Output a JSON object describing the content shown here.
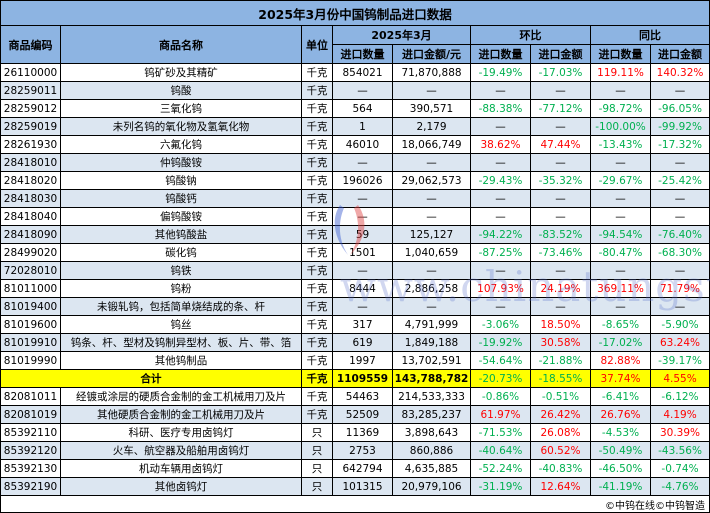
{
  "title": "2025年3月份中国钨制品进口数据",
  "headers": {
    "code": "商品编码",
    "name": "商品名称",
    "unit": "单位",
    "period": "2025年3月",
    "mom": "环比",
    "yoy": "同比",
    "qty": "进口数量",
    "amount": "进口金额/元",
    "amount_short": "进口金额"
  },
  "colors": {
    "header": "#8db4e2",
    "alt_row": "#dce6f1",
    "total": "#ffff00",
    "negative": "#00b050",
    "positive": "#ff0000"
  },
  "rows": [
    [
      "26110000",
      "钨矿砂及其精矿",
      "千克",
      "854021",
      "71,870,888",
      "-19.49%",
      "-17.03%",
      "119.11%",
      "140.32%"
    ],
    [
      "28259011",
      "钨酸",
      "千克",
      "—",
      "—",
      "—",
      "—",
      "—",
      "—"
    ],
    [
      "28259012",
      "三氧化钨",
      "千克",
      "564",
      "390,571",
      "-88.38%",
      "-77.12%",
      "-98.72%",
      "-96.05%"
    ],
    [
      "28259019",
      "未列名钨的氧化物及氢氧化物",
      "千克",
      "1",
      "2,179",
      "—",
      "—",
      "-100.00%",
      "-99.92%"
    ],
    [
      "28261930",
      "六氟化钨",
      "千克",
      "46010",
      "18,066,749",
      "38.62%",
      "47.44%",
      "-13.43%",
      "-17.32%"
    ],
    [
      "28418010",
      "仲钨酸铵",
      "千克",
      "—",
      "—",
      "—",
      "—",
      "—",
      "—"
    ],
    [
      "28418020",
      "钨酸钠",
      "千克",
      "196026",
      "29,062,573",
      "-29.43%",
      "-35.32%",
      "-29.67%",
      "-25.42%"
    ],
    [
      "28418030",
      "钨酸钙",
      "千克",
      "—",
      "—",
      "—",
      "—",
      "—",
      "—"
    ],
    [
      "28418040",
      "偏钨酸铵",
      "千克",
      "—",
      "—",
      "—",
      "—",
      "—",
      "—"
    ],
    [
      "28418090",
      "其他钨酸盐",
      "千克",
      "59",
      "125,127",
      "-94.22%",
      "-83.52%",
      "-94.54%",
      "-76.40%"
    ],
    [
      "28499020",
      "碳化钨",
      "千克",
      "1501",
      "1,040,659",
      "-87.25%",
      "-73.46%",
      "-80.47%",
      "-68.30%"
    ],
    [
      "72028010",
      "钨铁",
      "千克",
      "—",
      "—",
      "—",
      "—",
      "—",
      "—"
    ],
    [
      "81011000",
      "钨粉",
      "千克",
      "8444",
      "2,886,258",
      "107.93%",
      "24.19%",
      "369.11%",
      "71.79%"
    ],
    [
      "81019400",
      "未锻轧钨，包括简单烧结成的条、杆",
      "千克",
      "—",
      "—",
      "—",
      "—",
      "—",
      "—"
    ],
    [
      "81019600",
      "钨丝",
      "千克",
      "317",
      "4,791,999",
      "-3.06%",
      "18.50%",
      "-8.65%",
      "-5.90%"
    ],
    [
      "81019910",
      "钨条、杆、型材及钨制异型材、板、片、带、箔",
      "千克",
      "619",
      "1,849,188",
      "-19.92%",
      "30.58%",
      "-17.02%",
      "63.24%"
    ],
    [
      "81019990",
      "其他钨制品",
      "千克",
      "1997",
      "13,702,591",
      "-54.64%",
      "-21.88%",
      "82.88%",
      "-39.17%"
    ],
    [
      "",
      "合计",
      "千克",
      "1109559",
      "143,788,782",
      "-20.73%",
      "-18.55%",
      "37.74%",
      "4.55%"
    ],
    [
      "82081011",
      "经镀或涂层的硬质合金制的金工机械用刀及片",
      "千克",
      "54463",
      "214,533,333",
      "-0.86%",
      "-0.51%",
      "-6.41%",
      "-6.12%"
    ],
    [
      "82081019",
      "其他硬质合金制的金工机械用刀及片",
      "千克",
      "52509",
      "83,285,237",
      "61.97%",
      "26.42%",
      "26.76%",
      "4.19%"
    ],
    [
      "85392110",
      "科研、医疗专用卤钨灯",
      "只",
      "11369",
      "3,898,643",
      "-71.53%",
      "26.08%",
      "-4.53%",
      "30.39%"
    ],
    [
      "85392120",
      "火车、航空器及船舶用卤钨灯",
      "只",
      "2753",
      "860,886",
      "-40.64%",
      "60.52%",
      "-50.49%",
      "-43.56%"
    ],
    [
      "85392130",
      "机动车辆用卤钨灯",
      "只",
      "642794",
      "4,635,885",
      "-52.24%",
      "-40.83%",
      "-46.50%",
      "-0.74%"
    ],
    [
      "85392190",
      "其他卤钨灯",
      "只",
      "101315",
      "20,979,106",
      "-31.19%",
      "12.64%",
      "-41.19%",
      "-4.76%"
    ]
  ],
  "footer": "©中钨在线©中钨智造",
  "watermark": "www.chinatungsten.com"
}
